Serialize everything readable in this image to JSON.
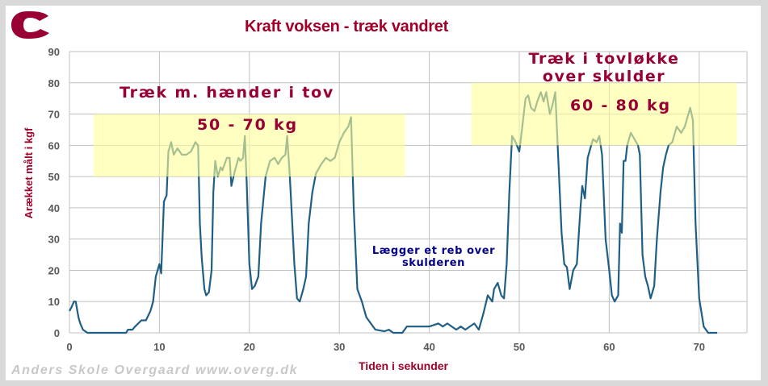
{
  "logo_letter": "C",
  "colors": {
    "title": "#a00028",
    "line": "#1f5f86",
    "band": "#ffff99",
    "annotation": "#990033",
    "annotation_blue": "#00008b",
    "grid": "#c0c0c0"
  },
  "chart_data": {
    "type": "line",
    "title": "Kraft voksen - træk vandret",
    "xlabel": "Tiden i sekunder",
    "ylabel": "Arækket målt i kgf",
    "xlim": [
      0,
      75
    ],
    "ylim": [
      0,
      90
    ],
    "x_ticks": [
      "0",
      "10",
      "20",
      "30",
      "40",
      "50",
      "60",
      "70"
    ],
    "y_ticks": [
      "0",
      "10",
      "20",
      "30",
      "40",
      "50",
      "60",
      "70",
      "80",
      "90"
    ],
    "grid": true,
    "legend": "none",
    "annotations": [
      {
        "text": "Træk m. hænder i tov",
        "x": 5,
        "y": 75
      },
      {
        "text": "50 - 70 kg",
        "x": 17,
        "y": 65
      },
      {
        "text": "Træk i tovløkke over skulder",
        "x": 55,
        "y": 83
      },
      {
        "text": "60 - 80 kg",
        "x": 58,
        "y": 72
      },
      {
        "text": "Lægger et reb over skulderen",
        "x": 42,
        "y": 24
      }
    ],
    "bands": [
      {
        "x0": 2.7,
        "x1": 37.3,
        "y0": 50,
        "y1": 70
      },
      {
        "x0": 44.7,
        "x1": 74.2,
        "y0": 60,
        "y1": 80
      }
    ],
    "series": [
      {
        "name": "Kraft",
        "points": [
          [
            0,
            7
          ],
          [
            0.2,
            8
          ],
          [
            0.5,
            10
          ],
          [
            0.7,
            10
          ],
          [
            1,
            5
          ],
          [
            1.2,
            3
          ],
          [
            1.5,
            1
          ],
          [
            2,
            0
          ],
          [
            6.3,
            0
          ],
          [
            6.5,
            1
          ],
          [
            7,
            1
          ],
          [
            7.3,
            2
          ],
          [
            8,
            4
          ],
          [
            8.5,
            4
          ],
          [
            9,
            7
          ],
          [
            9.3,
            10
          ],
          [
            9.6,
            18
          ],
          [
            10,
            22
          ],
          [
            10.2,
            19
          ],
          [
            10.5,
            42
          ],
          [
            10.8,
            44
          ],
          [
            11,
            58
          ],
          [
            11.3,
            61
          ],
          [
            11.6,
            57
          ],
          [
            12,
            59
          ],
          [
            12.5,
            57
          ],
          [
            13,
            57
          ],
          [
            13.5,
            58
          ],
          [
            14,
            61
          ],
          [
            14.3,
            60
          ],
          [
            14.5,
            35
          ],
          [
            14.7,
            24
          ],
          [
            15,
            14
          ],
          [
            15.2,
            12
          ],
          [
            15.5,
            13
          ],
          [
            15.8,
            20
          ],
          [
            16,
            45
          ],
          [
            16.2,
            55
          ],
          [
            16.5,
            50
          ],
          [
            16.8,
            53
          ],
          [
            17,
            52
          ],
          [
            17.5,
            56
          ],
          [
            17.8,
            56
          ],
          [
            18,
            47
          ],
          [
            18.4,
            52
          ],
          [
            18.8,
            56
          ],
          [
            19,
            55
          ],
          [
            19.3,
            56
          ],
          [
            19.5,
            63
          ],
          [
            19.7,
            48
          ],
          [
            20,
            22
          ],
          [
            20.3,
            14
          ],
          [
            20.6,
            15
          ],
          [
            21,
            18
          ],
          [
            21.3,
            35
          ],
          [
            21.8,
            50
          ],
          [
            22.3,
            55
          ],
          [
            22.8,
            56
          ],
          [
            23.2,
            54
          ],
          [
            23.6,
            56
          ],
          [
            24,
            57
          ],
          [
            24.2,
            63
          ],
          [
            24.5,
            50
          ],
          [
            25,
            22
          ],
          [
            25.3,
            11
          ],
          [
            25.6,
            10
          ],
          [
            26,
            14
          ],
          [
            26.3,
            18
          ],
          [
            26.6,
            35
          ],
          [
            27,
            45
          ],
          [
            27.4,
            51
          ],
          [
            28,
            54
          ],
          [
            28.5,
            56
          ],
          [
            29,
            55
          ],
          [
            29.5,
            56
          ],
          [
            30,
            61
          ],
          [
            30.5,
            64
          ],
          [
            31,
            66
          ],
          [
            31.3,
            69
          ],
          [
            31.6,
            40
          ],
          [
            32,
            14
          ],
          [
            32.5,
            10
          ],
          [
            33,
            5
          ],
          [
            33.5,
            3
          ],
          [
            34,
            1
          ],
          [
            35,
            0.5
          ],
          [
            35.5,
            1
          ],
          [
            36,
            0
          ],
          [
            37,
            0
          ],
          [
            37.5,
            2
          ],
          [
            38,
            2
          ],
          [
            40,
            2
          ],
          [
            41,
            3
          ],
          [
            41.5,
            2
          ],
          [
            42,
            3
          ],
          [
            43,
            1
          ],
          [
            43.5,
            2
          ],
          [
            44,
            1
          ],
          [
            45,
            3
          ],
          [
            45.5,
            1
          ],
          [
            46,
            6
          ],
          [
            46.5,
            12
          ],
          [
            47,
            10
          ],
          [
            47.2,
            14
          ],
          [
            47.6,
            16
          ],
          [
            48,
            12
          ],
          [
            48.3,
            11
          ],
          [
            48.6,
            22
          ],
          [
            48.9,
            45
          ],
          [
            49.2,
            63
          ],
          [
            49.6,
            61
          ],
          [
            50,
            58
          ],
          [
            50.3,
            65
          ],
          [
            50.7,
            75
          ],
          [
            51,
            76
          ],
          [
            51.3,
            72
          ],
          [
            51.7,
            71
          ],
          [
            52,
            74
          ],
          [
            52.4,
            77
          ],
          [
            52.7,
            74
          ],
          [
            53,
            77
          ],
          [
            53.4,
            70
          ],
          [
            53.7,
            73
          ],
          [
            54,
            77
          ],
          [
            54.3,
            58
          ],
          [
            54.7,
            32
          ],
          [
            55,
            22
          ],
          [
            55.3,
            21
          ],
          [
            55.6,
            14
          ],
          [
            56,
            20
          ],
          [
            56.4,
            22
          ],
          [
            56.8,
            40
          ],
          [
            57,
            47
          ],
          [
            57.3,
            43
          ],
          [
            57.6,
            56
          ],
          [
            57.9,
            59
          ],
          [
            58.2,
            62
          ],
          [
            58.6,
            61
          ],
          [
            58.9,
            63
          ],
          [
            59.2,
            57
          ],
          [
            59.6,
            30
          ],
          [
            60,
            20
          ],
          [
            60.3,
            12
          ],
          [
            60.6,
            10
          ],
          [
            61,
            12
          ],
          [
            61.2,
            35
          ],
          [
            61.4,
            32
          ],
          [
            61.6,
            55
          ],
          [
            61.8,
            55
          ],
          [
            62,
            60
          ],
          [
            62.4,
            64
          ],
          [
            62.8,
            62
          ],
          [
            63.2,
            60
          ],
          [
            63.4,
            57
          ],
          [
            63.7,
            25
          ],
          [
            64,
            18
          ],
          [
            64.3,
            15
          ],
          [
            64.6,
            11
          ],
          [
            65,
            15
          ],
          [
            65.3,
            30
          ],
          [
            65.7,
            45
          ],
          [
            66,
            53
          ],
          [
            66.3,
            57
          ],
          [
            66.6,
            60
          ],
          [
            67,
            61
          ],
          [
            67.5,
            66
          ],
          [
            68,
            64
          ],
          [
            68.4,
            66
          ],
          [
            68.8,
            70
          ],
          [
            69,
            72
          ],
          [
            69.3,
            68
          ],
          [
            69.6,
            35
          ],
          [
            70,
            11
          ],
          [
            70.5,
            2
          ],
          [
            71,
            0
          ],
          [
            72,
            0
          ]
        ]
      }
    ]
  },
  "credit": "Anders Skole Overgaard www.overg.dk"
}
